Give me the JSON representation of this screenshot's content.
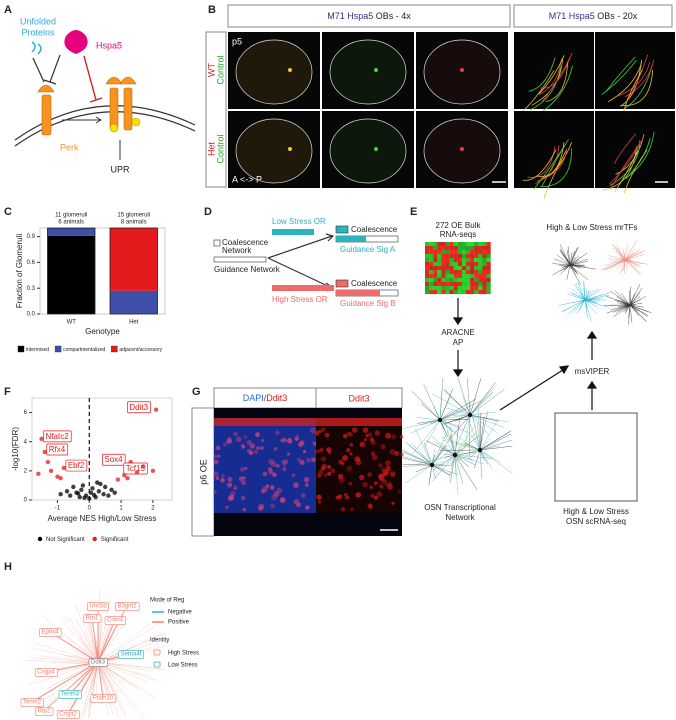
{
  "panels": {
    "a": {
      "letter": "A",
      "unfolded": [
        "Unfolded",
        "Proteins"
      ],
      "hspa5": "Hspa5",
      "perk": "Perk",
      "upr": "UPR"
    },
    "b": {
      "letter": "B",
      "titles": [
        [
          "M71 Hspa5",
          "OBs - 4x"
        ],
        [
          "M71 Hspa5",
          "OBs - 20x"
        ]
      ],
      "rows": [
        [
          "WT",
          "Control"
        ],
        [
          "Het",
          "Control"
        ]
      ],
      "age": "p5",
      "axis": "A <-> P"
    },
    "c": {
      "letter": "C"
    },
    "d": {
      "letter": "D",
      "network": [
        "Coalescence",
        "Network"
      ],
      "guidance": "Guidance Network",
      "low": "Low Stress OR",
      "high": "High Stress OR",
      "outputs": [
        [
          "Coalescence",
          "Guidance Sig A"
        ],
        [
          "Coalescence",
          "Guidance Sig B"
        ]
      ]
    },
    "e": {
      "letter": "E",
      "bulk": [
        "272 OE Bulk",
        "RNA-seqs"
      ],
      "aracne": [
        "ARACNE",
        "AP"
      ],
      "network": [
        "OSN Transcriptional",
        "Network"
      ],
      "mrtfs": "High & Low Stress mrTFs",
      "msviper": "msVIPER",
      "scrna": [
        "High & Low Stress",
        "OSN scRNA-seq"
      ]
    },
    "f": {
      "letter": "F"
    },
    "g": {
      "letter": "G",
      "headers": [
        [
          "DAPI",
          "/Ddit3"
        ],
        "Ddit3"
      ],
      "side": "p6 OE"
    },
    "h": {
      "letter": "H",
      "hub": "Ddit3",
      "high_stress_genes": [
        "Unc5d",
        "B3gnt2",
        "Rtn1",
        "Cntn4",
        "Ephx4",
        "Cnga4",
        "Pcdh10",
        "Tenm2",
        "Rtp2",
        "Cnga2"
      ],
      "low_stress_genes": [
        "Sema4f",
        "Tenm3"
      ],
      "mode_title": "Mode of Reg",
      "modes": [
        {
          "name": "Negative",
          "color": "#2bb3c0"
        },
        {
          "name": "Positive",
          "color": "#f08070"
        }
      ],
      "identity_title": "Identity",
      "identities": [
        {
          "name": "High Stress",
          "color": "#f08070"
        },
        {
          "name": "Low Stress",
          "color": "#2bb3c0"
        }
      ]
    }
  },
  "chart_data": [
    {
      "type": "bar",
      "stacked": true,
      "y_label": "Fraction of Glomeruli",
      "x_label": "Genotype",
      "categories": [
        "WT",
        "Het"
      ],
      "annotations": [
        [
          "11 glomeruli",
          "6 animals"
        ],
        [
          "15 glomeruli",
          "8 animals"
        ]
      ],
      "series": [
        {
          "name": "intermixed",
          "color": "#000000",
          "values": [
            0.91,
            0
          ]
        },
        {
          "name": "compartmentalized",
          "color": "#3f4fa8",
          "values": [
            0.09,
            0.27
          ]
        },
        {
          "name": "adjacent/accessory",
          "color": "#e31a1c",
          "values": [
            0,
            0.73
          ]
        }
      ],
      "ylim": [
        0,
        1
      ],
      "yticks": [
        {
          "value": 0,
          "label": "0.0"
        },
        0.3,
        0.6,
        0.9
      ],
      "legend": "bottom"
    },
    {
      "type": "scatter",
      "x_label": "Average NES High/Low Stress",
      "y_label": "-log10(FDR)",
      "xlim": [
        -1.8,
        2.6
      ],
      "ylim": [
        0,
        7
      ],
      "xticks": [
        -1,
        0,
        1,
        2
      ],
      "yticks": [
        0,
        2,
        4,
        6
      ],
      "reference_x": 0,
      "legend": "bottom",
      "series": [
        {
          "name": "Not Significant",
          "color": "#000000",
          "x": [
            -0.9,
            -0.7,
            -0.6,
            -0.5,
            -0.4,
            -0.3,
            -0.25,
            -0.2,
            -0.1,
            0,
            0.05,
            0.1,
            0.2,
            0.3,
            0.35,
            0.45,
            0.5,
            0.6,
            0.7,
            0.8,
            -0.15,
            0.15,
            0.25,
            -0.35
          ],
          "y": [
            0.4,
            0.6,
            0.3,
            0.9,
            0.5,
            0.2,
            0.7,
            1.0,
            0.3,
            0.1,
            0.5,
            0.8,
            0.2,
            0.6,
            1.1,
            0.4,
            0.9,
            0.3,
            0.7,
            0.5,
            0.15,
            0.35,
            1.2,
            0.45
          ]
        },
        {
          "name": "Significant",
          "color": "#e41a1c",
          "x": [
            -1.5,
            -1.4,
            -0.8,
            2.1,
            1.3,
            2.0,
            -1.6,
            -1.2,
            -1.0,
            -1.3,
            1.1,
            1.5,
            1.7,
            1.2,
            0.9,
            -0.9
          ],
          "y": [
            4.2,
            3.3,
            2.2,
            6.2,
            2.6,
            2.0,
            1.8,
            2.0,
            1.6,
            2.6,
            1.7,
            1.9,
            2.3,
            1.5,
            1.4,
            1.5
          ],
          "labels": [
            "Nfatc2",
            "Rfx4",
            "Ebf2",
            "Ddit3",
            "Sox4",
            "Tcf15",
            null,
            null,
            null,
            null,
            null,
            null,
            null,
            null,
            null,
            null
          ]
        }
      ]
    }
  ]
}
